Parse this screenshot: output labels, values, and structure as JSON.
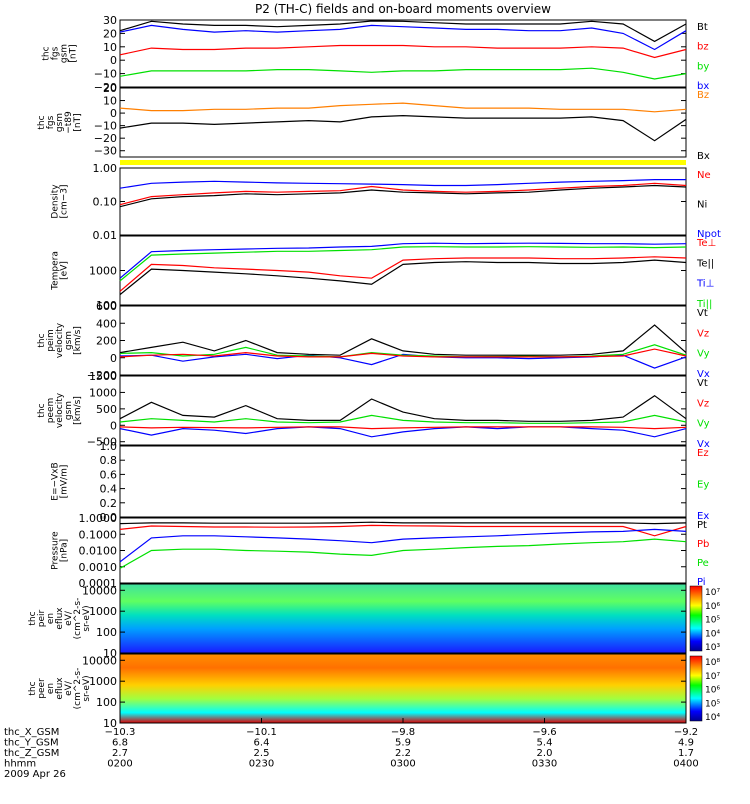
{
  "title": "P2 (TH-C) fields and on-board moments overview",
  "colors": {
    "black": "#000000",
    "red": "#ff0000",
    "green": "#00e000",
    "blue": "#0000ff",
    "yellow": "#ffff00",
    "orange": "#ff7f00"
  },
  "chart_data": [
    {
      "type": "line",
      "panel": "fgs_gsm",
      "ylabel": [
        "thc",
        "fgs",
        "gsm",
        "[nT]"
      ],
      "ticks": [
        "30",
        "20",
        "10",
        "0",
        "−10",
        "−20"
      ],
      "ylim": [
        -20,
        30
      ],
      "legend": [
        {
          "name": "Bt",
          "color": "#000000"
        },
        {
          "name": "bz",
          "color": "#ff0000"
        },
        {
          "name": "by",
          "color": "#00e000"
        },
        {
          "name": "bx",
          "color": "#0000ff"
        }
      ],
      "series": [
        {
          "name": "Bt",
          "color": "#000000",
          "values": [
            22,
            29,
            27,
            26,
            26,
            25,
            26,
            27,
            30,
            29,
            28,
            27,
            27,
            27,
            27,
            29,
            27,
            14,
            27
          ]
        },
        {
          "name": "bx",
          "color": "#0000ff",
          "values": [
            21,
            26,
            23,
            21,
            22,
            21,
            22,
            23,
            26,
            25,
            24,
            23,
            23,
            22,
            22,
            24,
            20,
            8,
            22
          ]
        },
        {
          "name": "bz",
          "color": "#ff0000",
          "values": [
            4,
            9,
            8,
            8,
            9,
            9,
            10,
            11,
            11,
            11,
            10,
            10,
            9,
            9,
            9,
            10,
            9,
            2,
            8
          ]
        },
        {
          "name": "by",
          "color": "#00e000",
          "values": [
            -12,
            -8,
            -8,
            -8,
            -8,
            -7,
            -7,
            -8,
            -9,
            -8,
            -8,
            -7,
            -7,
            -7,
            -7,
            -6,
            -9,
            -14,
            -10
          ]
        }
      ]
    },
    {
      "type": "line",
      "panel": "fgs_gsm_minus_t89",
      "ylabel": [
        "thc",
        "fgs",
        "gsm",
        "−t89",
        "[nT]"
      ],
      "ticks": [
        "20",
        "10",
        "0",
        "−10",
        "−20",
        "−30"
      ],
      "ylim": [
        -35,
        20
      ],
      "legend": [
        {
          "name": "Bz",
          "color": "#ff7f00"
        },
        {
          "name": "Bx",
          "color": "#000000"
        }
      ],
      "series": [
        {
          "name": "Bz",
          "color": "#ff7f00",
          "values": [
            4,
            2,
            2,
            3,
            3,
            4,
            4,
            6,
            7,
            8,
            6,
            4,
            4,
            4,
            3,
            3,
            3,
            1,
            3
          ]
        },
        {
          "name": "Bx",
          "color": "#000000",
          "values": [
            -12,
            -8,
            -8,
            -9,
            -8,
            -7,
            -6,
            -7,
            -3,
            -2,
            -3,
            -4,
            -4,
            -4,
            -4,
            -3,
            -6,
            -22,
            -5
          ]
        }
      ]
    },
    {
      "type": "line",
      "panel": "density",
      "scale": "log",
      "ylabel": [
        "Density",
        "[cm−3]"
      ],
      "ticks": [
        "1.00",
        "0.10",
        "0.01"
      ],
      "ylim": [
        0.01,
        1.0
      ],
      "legend": [
        {
          "name": "Ne",
          "color": "#ff0000"
        },
        {
          "name": "Ni",
          "color": "#000000"
        },
        {
          "name": "Npot",
          "color": "#0000ff"
        }
      ],
      "series": [
        {
          "name": "Npot",
          "color": "#0000ff",
          "values": [
            0.25,
            0.35,
            0.38,
            0.4,
            0.38,
            0.36,
            0.35,
            0.34,
            0.33,
            0.32,
            0.3,
            0.3,
            0.32,
            0.35,
            0.38,
            0.4,
            0.42,
            0.45,
            0.45
          ]
        },
        {
          "name": "Ne",
          "color": "#ff0000",
          "values": [
            0.08,
            0.14,
            0.16,
            0.18,
            0.2,
            0.19,
            0.2,
            0.21,
            0.28,
            0.22,
            0.2,
            0.19,
            0.2,
            0.22,
            0.25,
            0.28,
            0.3,
            0.35,
            0.3
          ]
        },
        {
          "name": "Ni",
          "color": "#000000",
          "values": [
            0.07,
            0.12,
            0.14,
            0.15,
            0.17,
            0.16,
            0.17,
            0.18,
            0.22,
            0.19,
            0.18,
            0.17,
            0.18,
            0.19,
            0.22,
            0.25,
            0.27,
            0.3,
            0.27
          ]
        }
      ]
    },
    {
      "type": "line",
      "panel": "temperature",
      "scale": "log",
      "ylabel": [
        "Tempera",
        "[eV]"
      ],
      "ticks": [
        "1000",
        "100"
      ],
      "ylim": [
        100,
        10000
      ],
      "legend": [
        {
          "name": "Te⊥",
          "color": "#ff0000"
        },
        {
          "name": "Te||",
          "color": "#000000"
        },
        {
          "name": "Ti⊥",
          "color": "#0000ff"
        },
        {
          "name": "Ti||",
          "color": "#00e000"
        }
      ],
      "series": [
        {
          "name": "Ti⊥",
          "color": "#0000ff",
          "values": [
            600,
            3500,
            3800,
            4000,
            4200,
            4400,
            4500,
            4800,
            5000,
            6000,
            6200,
            6000,
            6100,
            6200,
            6100,
            6000,
            6000,
            5800,
            6000
          ]
        },
        {
          "name": "Ti||",
          "color": "#00e000",
          "values": [
            500,
            2800,
            3000,
            3200,
            3400,
            3600,
            3600,
            3800,
            4000,
            4800,
            4900,
            4800,
            4800,
            4900,
            4800,
            4700,
            4800,
            4600,
            4800
          ]
        },
        {
          "name": "Te⊥",
          "color": "#ff0000",
          "values": [
            250,
            1500,
            1400,
            1200,
            1100,
            1000,
            900,
            700,
            600,
            2000,
            2200,
            2300,
            2300,
            2300,
            2200,
            2200,
            2300,
            2500,
            2300
          ]
        },
        {
          "name": "Te||",
          "color": "#000000",
          "values": [
            200,
            1100,
            1000,
            900,
            800,
            700,
            600,
            500,
            400,
            1500,
            1700,
            1800,
            1700,
            1700,
            1600,
            1600,
            1700,
            2000,
            1700
          ]
        }
      ]
    },
    {
      "type": "line",
      "panel": "eesa_velocity",
      "ylabel": [
        "thc",
        "peim",
        "velocity",
        "gsm",
        "[km/s]"
      ],
      "ticks": [
        "600",
        "400",
        "200",
        "0",
        "−200"
      ],
      "ylim": [
        -200,
        600
      ],
      "legend": [
        {
          "name": "Vt",
          "color": "#000000"
        },
        {
          "name": "Vz",
          "color": "#ff0000"
        },
        {
          "name": "Vy",
          "color": "#00e000"
        },
        {
          "name": "Vx",
          "color": "#0000ff"
        }
      ],
      "series": [
        {
          "name": "Vx",
          "color": "#0000ff",
          "values": [
            20,
            30,
            -40,
            10,
            40,
            -10,
            30,
            0,
            -80,
            40,
            10,
            0,
            0,
            -10,
            0,
            10,
            30,
            -120,
            10
          ]
        },
        {
          "name": "Vy",
          "color": "#00e000",
          "values": [
            50,
            60,
            20,
            40,
            120,
            30,
            20,
            10,
            60,
            30,
            20,
            10,
            15,
            20,
            10,
            20,
            40,
            150,
            30
          ]
        },
        {
          "name": "Vz",
          "color": "#ff0000",
          "values": [
            10,
            30,
            40,
            20,
            60,
            20,
            10,
            10,
            50,
            20,
            10,
            10,
            10,
            10,
            10,
            15,
            20,
            100,
            20
          ]
        },
        {
          "name": "Vt",
          "color": "#000000",
          "values": [
            60,
            120,
            180,
            80,
            200,
            60,
            40,
            30,
            220,
            80,
            40,
            30,
            30,
            30,
            30,
            40,
            80,
            380,
            60
          ]
        }
      ]
    },
    {
      "type": "line",
      "panel": "peem_velocity",
      "ylabel": [
        "thc",
        "peem",
        "velocity",
        "gsm",
        "[km/s]"
      ],
      "ticks": [
        "1500",
        "1000",
        "500",
        "0",
        "−500"
      ],
      "ylim": [
        -600,
        1500
      ],
      "legend": [
        {
          "name": "Vt",
          "color": "#000000"
        },
        {
          "name": "Vz",
          "color": "#ff0000"
        },
        {
          "name": "Vy",
          "color": "#00e000"
        },
        {
          "name": "Vx",
          "color": "#0000ff"
        }
      ],
      "series": [
        {
          "name": "Vx",
          "color": "#0000ff",
          "values": [
            -100,
            -300,
            -100,
            -150,
            -250,
            -100,
            -50,
            -100,
            -350,
            -200,
            -100,
            -50,
            -100,
            -50,
            -50,
            -100,
            -150,
            -350,
            -100
          ]
        },
        {
          "name": "Vy",
          "color": "#00e000",
          "values": [
            100,
            200,
            150,
            100,
            200,
            100,
            80,
            100,
            300,
            150,
            100,
            80,
            80,
            60,
            60,
            80,
            100,
            300,
            100
          ]
        },
        {
          "name": "Vz",
          "color": "#ff0000",
          "values": [
            -50,
            -80,
            -60,
            -70,
            -80,
            -60,
            -50,
            -50,
            -100,
            -80,
            -60,
            -50,
            -50,
            -50,
            -50,
            -50,
            -60,
            -100,
            -60
          ]
        },
        {
          "name": "Vt",
          "color": "#000000",
          "values": [
            200,
            700,
            300,
            250,
            600,
            200,
            150,
            150,
            800,
            400,
            200,
            150,
            150,
            120,
            120,
            150,
            250,
            900,
            200
          ]
        }
      ]
    },
    {
      "type": "line",
      "panel": "e_vxb",
      "ylabel": [
        "E=−VxB",
        "[mV/m]"
      ],
      "ticks": [
        "1.0",
        "0.8",
        "0.6",
        "0.4",
        "0.2",
        "0.0"
      ],
      "ylim": [
        0,
        1
      ],
      "legend": [
        {
          "name": "Ez",
          "color": "#ff0000"
        },
        {
          "name": "Ey",
          "color": "#00e000"
        },
        {
          "name": "Ex",
          "color": "#0000ff"
        }
      ],
      "series": []
    },
    {
      "type": "line",
      "panel": "pressure",
      "scale": "log",
      "ylabel": [
        "Pressure",
        "[nPa]"
      ],
      "ticks": [
        "1.0000",
        "0.1000",
        "0.0100",
        "0.0010",
        "0.0001"
      ],
      "ylim": [
        0.0001,
        1.0
      ],
      "legend": [
        {
          "name": "Pt",
          "color": "#000000"
        },
        {
          "name": "Pb",
          "color": "#ff0000"
        },
        {
          "name": "Pe",
          "color": "#00e000"
        },
        {
          "name": "Pi",
          "color": "#0000ff"
        }
      ],
      "series": [
        {
          "name": "Pt",
          "color": "#000000",
          "values": [
            0.45,
            0.5,
            0.5,
            0.48,
            0.48,
            0.48,
            0.48,
            0.5,
            0.55,
            0.5,
            0.5,
            0.5,
            0.5,
            0.5,
            0.5,
            0.5,
            0.5,
            0.45,
            0.5
          ]
        },
        {
          "name": "Pb",
          "color": "#ff0000",
          "values": [
            0.2,
            0.32,
            0.3,
            0.28,
            0.28,
            0.27,
            0.28,
            0.3,
            0.35,
            0.33,
            0.32,
            0.3,
            0.3,
            0.3,
            0.3,
            0.3,
            0.3,
            0.08,
            0.3
          ]
        },
        {
          "name": "Pi",
          "color": "#0000ff",
          "values": [
            0.002,
            0.06,
            0.08,
            0.08,
            0.07,
            0.06,
            0.05,
            0.04,
            0.03,
            0.05,
            0.06,
            0.07,
            0.08,
            0.1,
            0.12,
            0.14,
            0.15,
            0.2,
            0.15
          ]
        },
        {
          "name": "Pe",
          "color": "#00e000",
          "values": [
            0.0008,
            0.01,
            0.012,
            0.012,
            0.01,
            0.009,
            0.008,
            0.006,
            0.005,
            0.01,
            0.012,
            0.015,
            0.018,
            0.02,
            0.025,
            0.03,
            0.035,
            0.05,
            0.035
          ]
        }
      ]
    },
    {
      "type": "heatmap",
      "panel": "peir_spectrogram",
      "scale": "log",
      "ylabel": [
        "thc",
        "peir",
        "en",
        "eflux",
        "eV/",
        "(cm^2-s-",
        "sr-eV)"
      ],
      "ticks": [
        "10000",
        "1000",
        "100",
        "10"
      ],
      "ylim": [
        10,
        20000
      ],
      "colorbar_ticks": [
        "10⁷",
        "10⁶",
        "10⁵",
        "10⁴",
        "10³"
      ]
    },
    {
      "type": "heatmap",
      "panel": "peer_spectrogram",
      "scale": "log",
      "ylabel": [
        "thc",
        "peer",
        "en",
        "eflux",
        "eV/",
        "(cm^2-s-",
        "sr-eV)"
      ],
      "ticks": [
        "10000",
        "1000",
        "100",
        "10"
      ],
      "ylim": [
        10,
        20000
      ],
      "colorbar_ticks": [
        "10⁸",
        "10⁷",
        "10⁶",
        "10⁵",
        "10⁴"
      ]
    }
  ],
  "footer": {
    "row_labels": [
      "thc_X_GSM",
      "thc_Y_GSM",
      "thc_Z_GSM",
      "hhmm",
      "2009 Apr 26"
    ],
    "columns": [
      {
        "x": "−10.3",
        "y": "6.8",
        "z": "2.7",
        "time": "0200"
      },
      {
        "x": "−10.1",
        "y": "6.4",
        "z": "2.5",
        "time": "0230"
      },
      {
        "x": "−9.8",
        "y": "5.9",
        "z": "2.2",
        "time": "0300"
      },
      {
        "x": "−9.6",
        "y": "5.4",
        "z": "2.0",
        "time": "0330"
      },
      {
        "x": "−9.2",
        "y": "4.9",
        "z": "1.7",
        "time": "0400"
      }
    ]
  }
}
